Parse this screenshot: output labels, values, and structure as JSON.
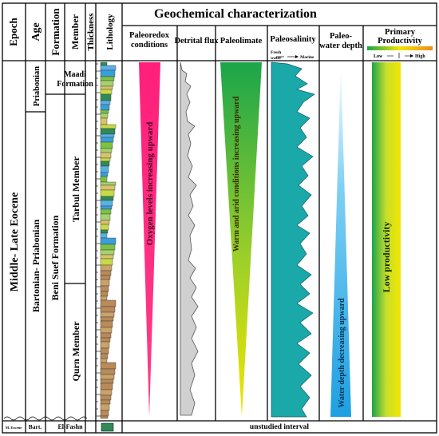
{
  "header": {
    "epoch": "Epoch",
    "age": "Age",
    "formation": "Formation",
    "member": "Member",
    "thickness": "Thickness",
    "lithology": "Lithology",
    "main_title": "Geochemical characterization"
  },
  "columns": {
    "paleoredox": {
      "line1": "Paleoredox",
      "line2": "conditions",
      "note": "Oxygen levels increasing upward",
      "color": "#ff1f7a"
    },
    "detrital": {
      "label": "Detrital flux"
    },
    "paleoclimate": {
      "label": "Paleolimate",
      "note": "Warm and arid conditions increasing upward",
      "color_top": "#1aa54a",
      "color_bottom": "#f2e600"
    },
    "paleosalinity": {
      "label": "Paleosalinity",
      "fresh": "Fresh",
      "water": "water",
      "marine": "Marine",
      "color": "#1aa8a8"
    },
    "paleowater": {
      "line1": "Paleo-",
      "line2": "water depth",
      "note": "Water depth decreasing upward",
      "color": "#2ab0e8"
    },
    "productivity": {
      "line1": "Primary",
      "line2": "Productivity",
      "low": "Low",
      "high": "High",
      "note": "Low productivity"
    }
  },
  "strat": {
    "epoch": "Middle- Late Eocene",
    "age_top": "Priabonian",
    "age_main": "Bartonian- Priabonian",
    "formation_top": "Maadi",
    "formation_top2": "Formation",
    "formation_main": "Beni Suef Formation",
    "member_upper": "Tarbul Member",
    "member_lower": "Qurn Member"
  },
  "bottom": {
    "epoch": "M. Eocene",
    "age": "Bart.",
    "formation": "El-Fashn",
    "unstudied": "unstudied interval"
  }
}
